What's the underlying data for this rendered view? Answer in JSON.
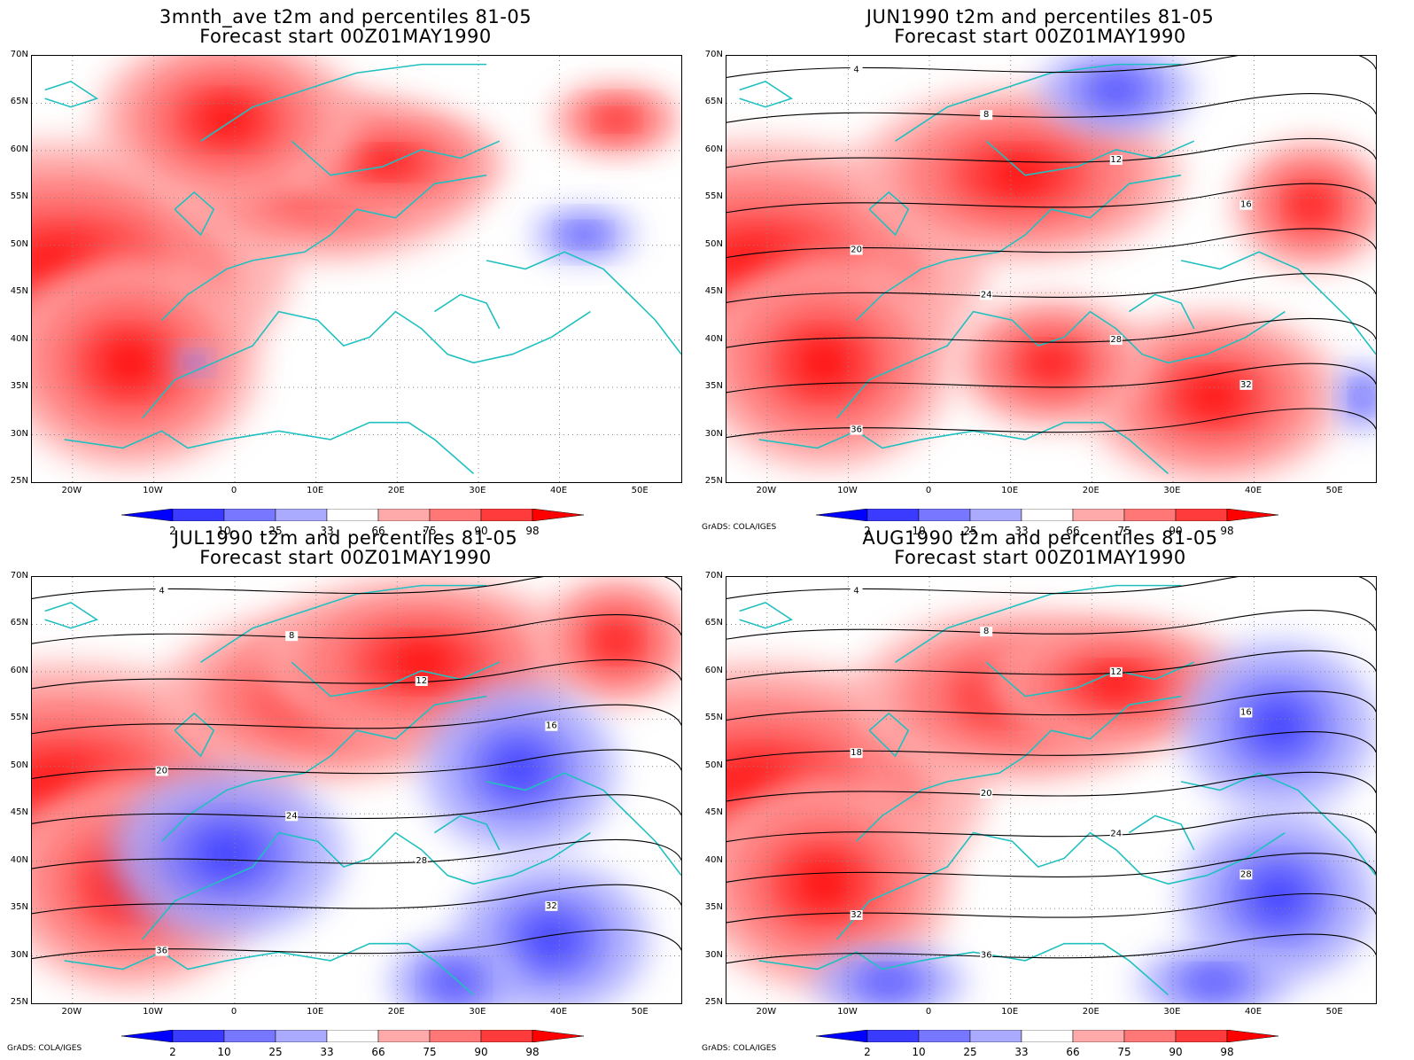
{
  "panels": [
    {
      "id": "avg",
      "title_line1": "3mnth_ave t2m and percentiles 81-05",
      "title_line2": "Forecast start 00Z01MAY1990",
      "credit": "",
      "heat": [
        [
          0.05,
          0.5,
          0.35,
          0.3
        ],
        [
          0.15,
          0.72,
          0.2,
          0.25
        ],
        [
          0.45,
          0.28,
          0.25,
          0.2
        ],
        [
          0.55,
          0.25,
          0.18,
          0.12
        ],
        [
          0.3,
          0.15,
          0.2,
          0.2
        ],
        [
          0.9,
          0.15,
          0.1,
          0.08
        ]
      ],
      "cold": [
        [
          0.85,
          0.42,
          0.08,
          0.06
        ],
        [
          0.25,
          0.72,
          0.03,
          0.03
        ]
      ],
      "contour_labels": []
    },
    {
      "id": "jun",
      "title_line1": "JUN1990 t2m and percentiles 81-05",
      "title_line2": "Forecast start 00Z01MAY1990",
      "credit": "GrADS: COLA/IGES",
      "heat": [
        [
          0.05,
          0.5,
          0.35,
          0.3
        ],
        [
          0.15,
          0.72,
          0.2,
          0.25
        ],
        [
          0.45,
          0.28,
          0.25,
          0.2
        ],
        [
          0.75,
          0.8,
          0.2,
          0.2
        ],
        [
          0.9,
          0.35,
          0.12,
          0.15
        ],
        [
          0.5,
          0.72,
          0.15,
          0.15
        ]
      ],
      "cold": [
        [
          0.6,
          0.08,
          0.12,
          0.1
        ],
        [
          0.98,
          0.8,
          0.04,
          0.08
        ]
      ],
      "contour_labels": [
        "4",
        "8",
        "12",
        "16",
        "20",
        "24",
        "28",
        "32",
        "36"
      ]
    },
    {
      "id": "jul",
      "title_line1": "JUL1990 t2m and percentiles 81-05",
      "title_line2": "Forecast start 00Z01MAY1990",
      "credit": "GrADS: COLA/IGES",
      "heat": [
        [
          0.05,
          0.5,
          0.35,
          0.3
        ],
        [
          0.15,
          0.72,
          0.2,
          0.25
        ],
        [
          0.45,
          0.28,
          0.25,
          0.2
        ],
        [
          0.6,
          0.2,
          0.25,
          0.2
        ],
        [
          0.9,
          0.15,
          0.12,
          0.15
        ]
      ],
      "cold": [
        [
          0.3,
          0.65,
          0.18,
          0.2
        ],
        [
          0.75,
          0.45,
          0.15,
          0.2
        ],
        [
          0.8,
          0.85,
          0.15,
          0.18
        ],
        [
          0.65,
          0.95,
          0.1,
          0.1
        ]
      ],
      "contour_labels": [
        "4",
        "8",
        "12",
        "16",
        "20",
        "24",
        "28",
        "32",
        "36"
      ]
    },
    {
      "id": "aug",
      "title_line1": "AUG1990 t2m and percentiles 81-05",
      "title_line2": "Forecast start 00Z01MAY1990",
      "credit": "GrADS: COLA/IGES",
      "heat": [
        [
          0.05,
          0.5,
          0.35,
          0.3
        ],
        [
          0.15,
          0.72,
          0.2,
          0.25
        ],
        [
          0.45,
          0.28,
          0.25,
          0.2
        ],
        [
          0.6,
          0.25,
          0.2,
          0.15
        ]
      ],
      "cold": [
        [
          0.85,
          0.35,
          0.15,
          0.2
        ],
        [
          0.85,
          0.75,
          0.15,
          0.2
        ],
        [
          0.75,
          0.95,
          0.12,
          0.08
        ],
        [
          0.25,
          0.95,
          0.12,
          0.08
        ]
      ],
      "contour_labels": [
        "4",
        "8",
        "12",
        "16",
        "18",
        "20",
        "24",
        "28",
        "32",
        "36"
      ]
    }
  ],
  "lat_labels": [
    "70N",
    "65N",
    "60N",
    "55N",
    "50N",
    "45N",
    "40N",
    "35N",
    "30N",
    "25N"
  ],
  "lon_labels": [
    "20W",
    "10W",
    "0",
    "10E",
    "20E",
    "30E",
    "40E",
    "50E"
  ],
  "colorbar": {
    "labels": [
      "2",
      "10",
      "25",
      "33",
      "66",
      "75",
      "90",
      "98"
    ],
    "colors": [
      "#0000ff",
      "#3b3bff",
      "#7777ff",
      "#aaaaff",
      "#ffffff",
      "#ffaaaa",
      "#ff7777",
      "#ff3b3b",
      "#ff0000"
    ]
  },
  "colors": {
    "coast": "#20c0c0",
    "contour": "#000000",
    "grid": "#888888"
  }
}
